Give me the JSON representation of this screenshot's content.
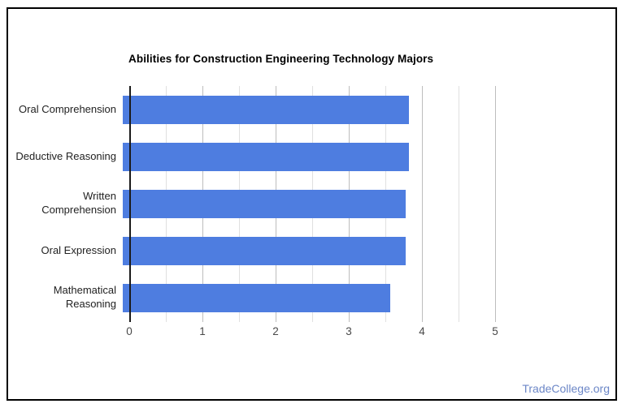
{
  "chart_data": {
    "type": "bar",
    "orientation": "horizontal",
    "title": "Abilities for Construction Engineering Technology Majors",
    "categories": [
      "Oral Comprehension",
      "Deductive Reasoning",
      "Written Comprehension",
      "Oral Expression",
      "Mathematical Reasoning"
    ],
    "values": [
      3.91,
      3.91,
      3.87,
      3.87,
      3.66
    ],
    "xlabel": "",
    "ylabel": "",
    "xlim": [
      0,
      5
    ],
    "xticks": [
      0,
      1,
      2,
      3,
      4,
      5
    ],
    "minor_grid_step": 0.5,
    "grid": true,
    "legend": false,
    "bar_color": "#4e7de0"
  },
  "footer": {
    "link_text": "TradeCollege.org",
    "link_color": "#6c87c7"
  },
  "frame": {
    "border_color": "#000000",
    "background": "#ffffff"
  }
}
